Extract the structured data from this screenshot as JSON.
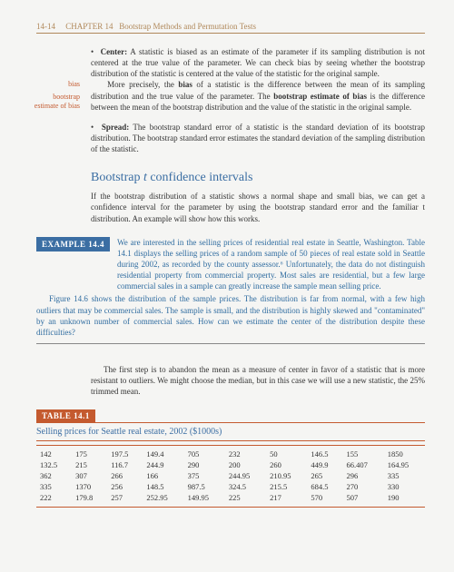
{
  "header": {
    "page_num": "14-14",
    "chapter": "CHAPTER 14",
    "title": "Bootstrap Methods and Permutation Tests"
  },
  "margin": {
    "bias": "bias",
    "bootstrap": "bootstrap",
    "estimate": "estimate of bias"
  },
  "bullets": {
    "center_label": "Center:",
    "center_text": " A statistic is biased as an estimate of the parameter if its sampling distribution is not centered at the true value of the parameter. We can check bias by seeing whether the bootstrap distribution of the statistic is centered at the value of the statistic for the original sample.",
    "center_text2a": "More precisely, the ",
    "bias_word": "bias",
    "center_text2b": " of a statistic is the difference between the mean of its sampling distribution and the true value of the parameter. The ",
    "bse_word": "bootstrap estimate of bias",
    "center_text2c": " is the difference between the mean of the bootstrap distribution and the value of the statistic in the original sample.",
    "spread_label": "Spread:",
    "spread_text": " The bootstrap standard error of a statistic is the standard deviation of its bootstrap distribution. The bootstrap standard error estimates the standard deviation of the sampling distribution of the statistic."
  },
  "section": {
    "title": "Bootstrap t confidence intervals",
    "intro": "If the bootstrap distribution of a statistic shows a normal shape and small bias, we can get a confidence interval for the parameter by using the bootstrap standard error and the familiar t distribution. An example will show how this works."
  },
  "example": {
    "badge": "EXAMPLE 14.4",
    "lead": "We are interested in the selling prices of residential real estate in Seattle, Washington. Table 14.1 displays the selling prices of a random sample of 50 pieces of real estate sold in Seattle during 2002, as recorded by the county assessor.⁶ Unfortunately, the data do not distinguish residential property from commercial property. Most sales are residential, but a few large commercial sales in a sample can greatly increase the sample mean selling price.",
    "para2": "Figure 14.6 shows the distribution of the sample prices. The distribution is far from normal, with a few high outliers that may be commercial sales. The sample is small, and the distribution is highly skewed and \"contaminated\" by an unknown number of commercial sales. How can we estimate the center of the distribution despite these difficulties?"
  },
  "post_example": "The first step is to abandon the mean as a measure of center in favor of a statistic that is more resistant to outliers. We might choose the median, but in this case we will use a new statistic, the 25% trimmed mean.",
  "table": {
    "badge": "TABLE 14.1",
    "caption": "Selling prices for Seattle real estate, 2002 ($1000s)",
    "rows": [
      [
        "142",
        "175",
        "197.5",
        "149.4",
        "705",
        "232",
        "50",
        "146.5",
        "155",
        "1850"
      ],
      [
        "132.5",
        "215",
        "116.7",
        "244.9",
        "290",
        "200",
        "260",
        "449.9",
        "66.407",
        "164.95"
      ],
      [
        "362",
        "307",
        "266",
        "166",
        "375",
        "244.95",
        "210.95",
        "265",
        "296",
        "335"
      ],
      [
        "335",
        "1370",
        "256",
        "148.5",
        "987.5",
        "324.5",
        "215.5",
        "684.5",
        "270",
        "330"
      ],
      [
        "222",
        "179.8",
        "257",
        "252.95",
        "149.95",
        "225",
        "217",
        "570",
        "507",
        "190"
      ]
    ]
  },
  "colors": {
    "accent_orange": "#c45a2f",
    "accent_blue": "#3b6ea3"
  }
}
